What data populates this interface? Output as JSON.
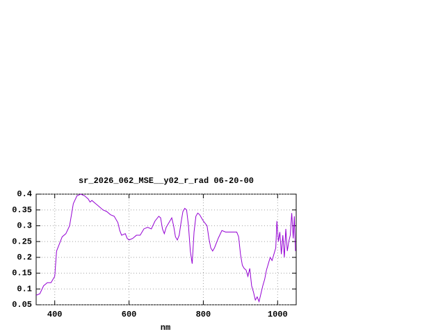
{
  "chart_data": {
    "type": "line",
    "title": "sr_2026_062_MSE__y02_r_rad 06-20-00",
    "x_label": "nm",
    "xlim": [
      350,
      1050
    ],
    "ylim": [
      0.05,
      0.4
    ],
    "xticks": [
      400,
      600,
      800,
      1000
    ],
    "yticks": [
      0.05,
      0.1,
      0.15,
      0.2,
      0.25,
      0.3,
      0.35,
      0.4
    ],
    "grid": true,
    "series": [
      {
        "color": "#9400d3",
        "x": [
          350,
          360,
          370,
          380,
          390,
          400,
          405,
          415,
          420,
          430,
          440,
          450,
          460,
          470,
          480,
          490,
          495,
          500,
          510,
          520,
          530,
          540,
          550,
          560,
          570,
          575,
          580,
          590,
          595,
          600,
          610,
          620,
          630,
          640,
          650,
          660,
          670,
          680,
          685,
          690,
          695,
          700,
          710,
          715,
          720,
          725,
          730,
          735,
          740,
          745,
          750,
          755,
          760,
          765,
          770,
          775,
          780,
          785,
          790,
          795,
          800,
          810,
          815,
          820,
          825,
          830,
          840,
          850,
          860,
          870,
          880,
          890,
          895,
          900,
          905,
          910,
          915,
          920,
          925,
          930,
          935,
          940,
          945,
          950,
          955,
          960,
          965,
          970,
          975,
          980,
          985,
          990,
          995,
          998,
          1002,
          1006,
          1010,
          1014,
          1018,
          1022,
          1026,
          1030,
          1034,
          1038,
          1042,
          1045,
          1048
        ],
        "values": [
          0.08,
          0.085,
          0.11,
          0.12,
          0.12,
          0.14,
          0.22,
          0.25,
          0.265,
          0.275,
          0.3,
          0.37,
          0.395,
          0.4,
          0.395,
          0.385,
          0.375,
          0.38,
          0.37,
          0.36,
          0.35,
          0.345,
          0.335,
          0.33,
          0.31,
          0.285,
          0.27,
          0.275,
          0.26,
          0.255,
          0.26,
          0.27,
          0.27,
          0.29,
          0.295,
          0.29,
          0.315,
          0.33,
          0.325,
          0.29,
          0.275,
          0.295,
          0.315,
          0.325,
          0.3,
          0.265,
          0.255,
          0.27,
          0.31,
          0.345,
          0.355,
          0.35,
          0.3,
          0.22,
          0.18,
          0.28,
          0.33,
          0.34,
          0.335,
          0.325,
          0.315,
          0.3,
          0.26,
          0.23,
          0.22,
          0.23,
          0.26,
          0.285,
          0.28,
          0.28,
          0.28,
          0.28,
          0.265,
          0.21,
          0.175,
          0.165,
          0.16,
          0.14,
          0.165,
          0.11,
          0.09,
          0.065,
          0.075,
          0.06,
          0.085,
          0.11,
          0.13,
          0.16,
          0.18,
          0.2,
          0.19,
          0.21,
          0.23,
          0.315,
          0.25,
          0.28,
          0.21,
          0.27,
          0.2,
          0.29,
          0.22,
          0.25,
          0.27,
          0.34,
          0.26,
          0.33,
          0.22
        ]
      }
    ]
  }
}
